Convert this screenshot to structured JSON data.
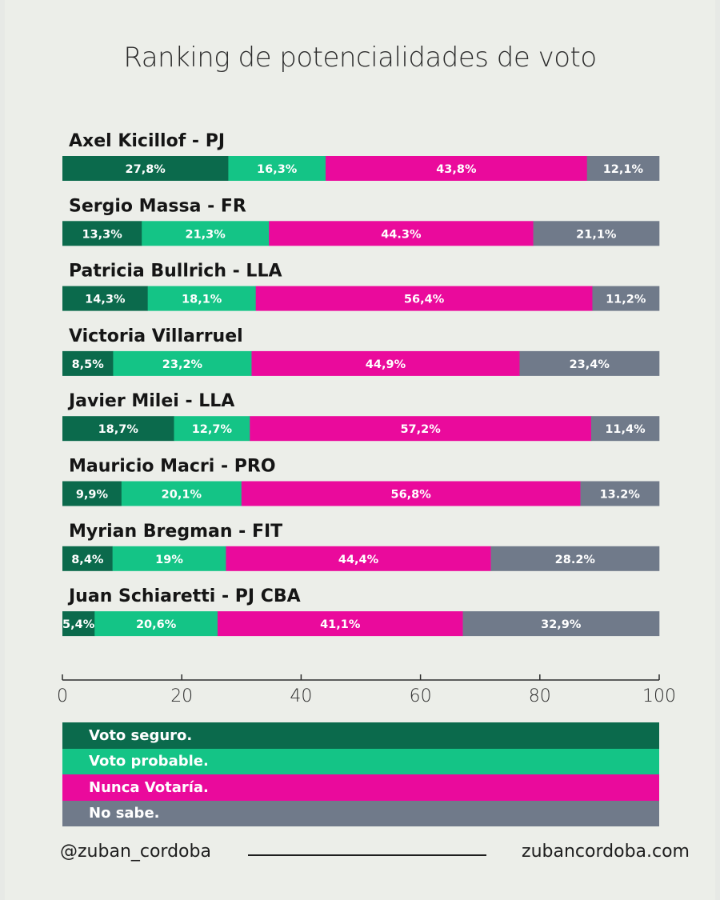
{
  "title": "Ranking de potencialidades de voto",
  "colors": {
    "seguro": "#0b6a4c",
    "probable": "#14c486",
    "nunca": "#ea0a9c",
    "nosabe": "#707a8a",
    "axis": "#2d2d2d"
  },
  "chart_data": {
    "type": "bar",
    "orientation": "horizontal",
    "stacked": true,
    "xlim": [
      0,
      100
    ],
    "x_ticks": [
      "0",
      "20",
      "40",
      "60",
      "80",
      "100"
    ],
    "categories": [
      "Axel Kicillof - PJ",
      "Sergio Massa - FR",
      "Patricia Bullrich - LLA",
      "Victoria Villarruel",
      "Javier Milei - LLA",
      "Mauricio Macri - PRO",
      "Myrian Bregman - FIT",
      "Juan Schiaretti - PJ CBA"
    ],
    "series": [
      {
        "name": "Voto seguro.",
        "values": [
          27.8,
          13.3,
          14.3,
          8.5,
          18.7,
          9.9,
          8.4,
          5.4
        ],
        "labels": [
          "27,8%",
          "13,3%",
          "14,3%",
          "8,5%",
          "18,7%",
          "9,9%",
          "8,4%",
          "5,4%"
        ]
      },
      {
        "name": "Voto probable.",
        "values": [
          16.3,
          21.3,
          18.1,
          23.2,
          12.7,
          20.1,
          19,
          20.6
        ],
        "labels": [
          "16,3%",
          "21,3%",
          "18,1%",
          "23,2%",
          "12,7%",
          "20,1%",
          "19%",
          "20,6%"
        ]
      },
      {
        "name": "Nunca Votaría.",
        "values": [
          43.8,
          44.3,
          56.4,
          44.9,
          57.2,
          56.8,
          44.4,
          41.1
        ],
        "labels": [
          "43,8%",
          "44.3%",
          "56,4%",
          "44,9%",
          "57,2%",
          "56,8%",
          "44,4%",
          "41,1%"
        ]
      },
      {
        "name": "No sabe.",
        "values": [
          12.1,
          21.1,
          11.2,
          23.4,
          11.4,
          13.2,
          28.2,
          32.9
        ],
        "labels": [
          "12,1%",
          "21,1%",
          "11,2%",
          "23,4%",
          "11,4%",
          "13.2%",
          "28.2%",
          "32,9%"
        ]
      }
    ]
  },
  "legend": {
    "items": [
      "Voto seguro.",
      "Voto probable.",
      "Nunca Votaría.",
      "No sabe."
    ]
  },
  "footer": {
    "handle": "@zuban_cordoba",
    "website": "zubancordoba.com"
  }
}
